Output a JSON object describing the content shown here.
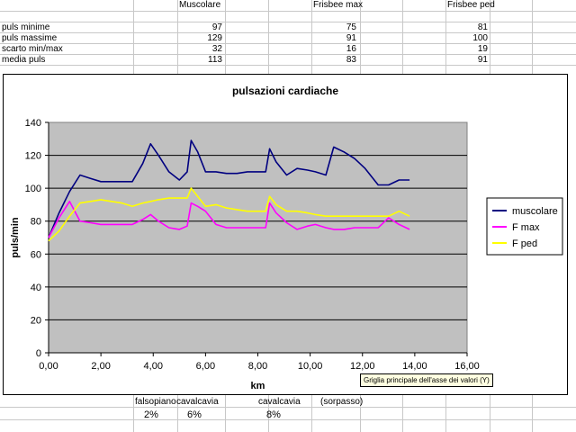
{
  "table": {
    "headers": [
      "Muscolare",
      "Frisbee max",
      "Frisbee ped"
    ],
    "rows": [
      {
        "label": "puls minime",
        "values": [
          "97",
          "75",
          "81"
        ]
      },
      {
        "label": "puls massime",
        "values": [
          "129",
          "91",
          "100"
        ]
      },
      {
        "label": "scarto min/max",
        "values": [
          "32",
          "16",
          "19"
        ]
      },
      {
        "label": "media puls",
        "values": [
          "113",
          "83",
          "91"
        ]
      }
    ]
  },
  "tooltip": "Griglia principale dell'asse dei valori (Y)",
  "notes": {
    "labels": [
      "falsopiano",
      "cavalcavia",
      "cavalcavia",
      "(sorpasso)"
    ],
    "percents": [
      "2%",
      "6%",
      "8%"
    ]
  },
  "colors": {
    "plot_bg": "#c0c0c0",
    "muscolare": "#000080",
    "fmax": "#ff00ff",
    "fped": "#ffff00"
  },
  "chart_data": {
    "type": "line",
    "title": "pulsazioni cardiache",
    "xlabel": "km",
    "ylabel": "puls/min",
    "xlim": [
      0,
      16
    ],
    "ylim": [
      0,
      140
    ],
    "xticks": [
      "0,00",
      "2,00",
      "4,00",
      "6,00",
      "8,00",
      "10,00",
      "12,00",
      "14,00",
      "16,00"
    ],
    "yticks": [
      "0",
      "20",
      "40",
      "60",
      "80",
      "100",
      "120",
      "140"
    ],
    "grid": "horizontal",
    "legend": "right",
    "series": [
      {
        "name": "muscolare",
        "x": [
          0,
          0.4,
          0.8,
          1.2,
          1.6,
          2,
          2.4,
          2.8,
          3.2,
          3.6,
          3.9,
          4.2,
          4.6,
          5,
          5.3,
          5.45,
          5.7,
          6,
          6.4,
          6.8,
          7.2,
          7.6,
          8,
          8.3,
          8.45,
          8.7,
          9.1,
          9.5,
          9.9,
          10.2,
          10.6,
          10.9,
          11.3,
          11.7,
          12.1,
          12.6,
          13,
          13.4,
          13.8
        ],
        "y": [
          70,
          85,
          98,
          108,
          106,
          104,
          104,
          104,
          104,
          115,
          127,
          120,
          110,
          105,
          110,
          129,
          122,
          110,
          110,
          109,
          109,
          110,
          110,
          110,
          124,
          116,
          108,
          112,
          111,
          110,
          108,
          125,
          122,
          118,
          112,
          102,
          102,
          105,
          105
        ]
      },
      {
        "name": "F max",
        "x": [
          0,
          0.4,
          0.8,
          1.2,
          1.6,
          2,
          2.4,
          2.8,
          3.2,
          3.6,
          3.9,
          4.2,
          4.6,
          5,
          5.3,
          5.45,
          5.7,
          6,
          6.4,
          6.8,
          7.2,
          7.6,
          8,
          8.3,
          8.45,
          8.7,
          9.1,
          9.5,
          9.9,
          10.2,
          10.6,
          10.9,
          11.3,
          11.7,
          12.1,
          12.6,
          13,
          13.4,
          13.8
        ],
        "y": [
          70,
          82,
          92,
          80,
          79,
          78,
          78,
          78,
          78,
          81,
          84,
          80,
          76,
          75,
          77,
          91,
          89,
          86,
          78,
          76,
          76,
          76,
          76,
          76,
          91,
          85,
          79,
          75,
          77,
          78,
          76,
          75,
          75,
          76,
          76,
          76,
          82,
          78,
          75
        ]
      },
      {
        "name": "F ped",
        "x": [
          0,
          0.4,
          0.8,
          1.2,
          1.6,
          2,
          2.4,
          2.8,
          3.2,
          3.6,
          3.9,
          4.2,
          4.6,
          5,
          5.3,
          5.45,
          5.7,
          6,
          6.4,
          6.8,
          7.2,
          7.6,
          8,
          8.3,
          8.45,
          8.7,
          9.1,
          9.5,
          9.9,
          10.2,
          10.6,
          10.9,
          11.3,
          11.7,
          12.1,
          12.6,
          13,
          13.4,
          13.8
        ],
        "y": [
          68,
          74,
          83,
          91,
          92,
          93,
          92,
          91,
          89,
          91,
          92,
          93,
          94,
          94,
          94,
          100,
          95,
          89,
          90,
          88,
          87,
          86,
          86,
          86,
          95,
          90,
          86,
          86,
          85,
          84,
          83,
          83,
          83,
          83,
          83,
          83,
          83,
          86,
          83
        ]
      }
    ]
  }
}
